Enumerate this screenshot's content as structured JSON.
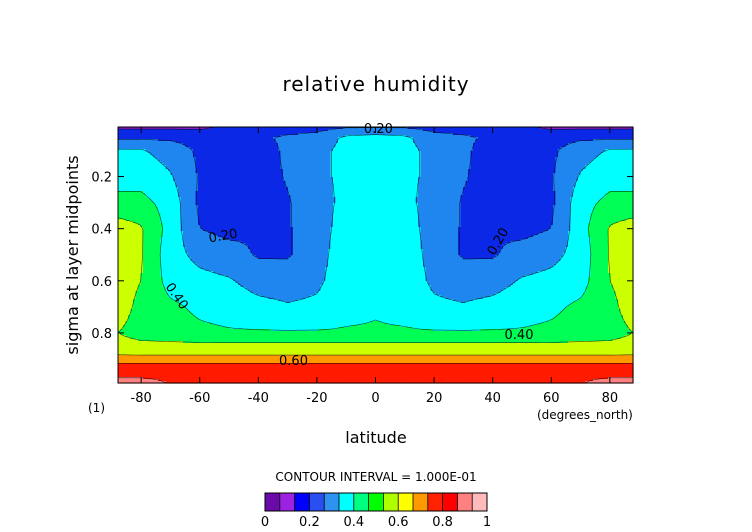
{
  "chart_data": {
    "type": "heatmap",
    "title": "relative humidity",
    "xlabel": "latitude",
    "ylabel": "sigma at layer midpoints",
    "x_units": "(degrees_north)",
    "panel_tag": "(1)",
    "xlim": [
      -87.9,
      87.9
    ],
    "ylim": [
      0.992,
      0.01
    ],
    "x_ticks": [
      "-80",
      "-60",
      "-40",
      "-20",
      "0",
      "20",
      "40",
      "60",
      "80"
    ],
    "x_tick_values": [
      -80,
      -60,
      -40,
      -20,
      0,
      20,
      40,
      60,
      80
    ],
    "y_ticks": [
      "0.2",
      "0.4",
      "0.6",
      "0.8"
    ],
    "y_tick_values": [
      0.2,
      0.4,
      0.6,
      0.8
    ],
    "contour_interval_text": "CONTOUR INTERVAL = 1.000E-01",
    "contour_labels": [
      {
        "text": "0.20",
        "x": 1,
        "y": 0.02,
        "angle": 0
      },
      {
        "text": "0.20",
        "x": -52,
        "y": 0.43,
        "angle": -10
      },
      {
        "text": "0.20",
        "x": 42,
        "y": 0.45,
        "angle": -60
      },
      {
        "text": "0.40",
        "x": -68,
        "y": 0.66,
        "angle": 55
      },
      {
        "text": "0.40",
        "x": 49,
        "y": 0.81,
        "angle": 0
      },
      {
        "text": "0.60",
        "x": -28,
        "y": 0.91,
        "angle": 0
      }
    ],
    "colorbar": {
      "ticks": [
        "0",
        "0.2",
        "0.4",
        "0.6",
        "0.8",
        "1"
      ],
      "tick_values": [
        0,
        0.2,
        0.4,
        0.6,
        0.8,
        1
      ],
      "colors": [
        "#6a0aa8",
        "#9b22e0",
        "#0000ff",
        "#2a4ff0",
        "#2f91f0",
        "#00ffff",
        "#00ff80",
        "#00ff00",
        "#b0ff00",
        "#ffff00",
        "#ff9900",
        "#ff2200",
        "#ff0000",
        "#ff8080",
        "#ffbbbb"
      ]
    },
    "levels": [
      0.1,
      0.2,
      0.3,
      0.4,
      0.5,
      0.6,
      0.7,
      0.8,
      0.9
    ],
    "band_colors": [
      "#8a1cc8",
      "#0b28e6",
      "#1f86f0",
      "#00ffff",
      "#00ff55",
      "#ccff00",
      "#ff9900",
      "#ff1a00",
      "#ff8080"
    ],
    "lat": [
      -88,
      -80,
      -70,
      -60,
      -50,
      -40,
      -30,
      -20,
      -10,
      0,
      10,
      20,
      30,
      40,
      50,
      60,
      70,
      80,
      88
    ],
    "sigma": [
      0.01,
      0.05,
      0.1,
      0.2,
      0.3,
      0.4,
      0.5,
      0.6,
      0.7,
      0.8,
      0.85,
      0.9,
      0.93,
      0.96,
      0.99
    ],
    "values": [
      [
        0.08,
        0.08,
        0.08,
        0.08,
        0.12,
        0.13,
        0.14,
        0.16,
        0.19,
        0.19,
        0.19,
        0.16,
        0.14,
        0.13,
        0.12,
        0.08,
        0.08,
        0.08,
        0.08
      ],
      [
        0.18,
        0.18,
        0.18,
        0.16,
        0.17,
        0.18,
        0.22,
        0.24,
        0.32,
        0.34,
        0.32,
        0.24,
        0.22,
        0.18,
        0.17,
        0.16,
        0.18,
        0.18,
        0.18
      ],
      [
        0.31,
        0.31,
        0.26,
        0.18,
        0.15,
        0.15,
        0.22,
        0.27,
        0.33,
        0.35,
        0.33,
        0.27,
        0.22,
        0.15,
        0.15,
        0.18,
        0.26,
        0.31,
        0.31
      ],
      [
        0.36,
        0.36,
        0.31,
        0.19,
        0.15,
        0.15,
        0.21,
        0.29,
        0.31,
        0.31,
        0.31,
        0.29,
        0.21,
        0.15,
        0.15,
        0.19,
        0.31,
        0.36,
        0.36
      ],
      [
        0.43,
        0.43,
        0.36,
        0.18,
        0.15,
        0.16,
        0.19,
        0.27,
        0.32,
        0.34,
        0.32,
        0.27,
        0.19,
        0.16,
        0.15,
        0.18,
        0.36,
        0.43,
        0.43
      ],
      [
        0.55,
        0.51,
        0.36,
        0.2,
        0.17,
        0.19,
        0.19,
        0.26,
        0.34,
        0.38,
        0.34,
        0.26,
        0.19,
        0.19,
        0.17,
        0.2,
        0.36,
        0.51,
        0.55
      ],
      [
        0.55,
        0.51,
        0.34,
        0.27,
        0.24,
        0.19,
        0.19,
        0.26,
        0.36,
        0.38,
        0.36,
        0.26,
        0.19,
        0.19,
        0.24,
        0.27,
        0.34,
        0.51,
        0.55
      ],
      [
        0.55,
        0.5,
        0.36,
        0.33,
        0.31,
        0.26,
        0.25,
        0.28,
        0.36,
        0.39,
        0.36,
        0.28,
        0.25,
        0.26,
        0.31,
        0.33,
        0.36,
        0.5,
        0.55
      ],
      [
        0.55,
        0.47,
        0.42,
        0.38,
        0.36,
        0.33,
        0.31,
        0.32,
        0.37,
        0.39,
        0.37,
        0.32,
        0.31,
        0.33,
        0.36,
        0.38,
        0.42,
        0.47,
        0.55
      ],
      [
        0.5,
        0.46,
        0.44,
        0.42,
        0.41,
        0.41,
        0.41,
        0.41,
        0.41,
        0.41,
        0.41,
        0.41,
        0.41,
        0.41,
        0.41,
        0.42,
        0.44,
        0.46,
        0.5
      ],
      [
        0.54,
        0.53,
        0.53,
        0.53,
        0.53,
        0.53,
        0.53,
        0.53,
        0.53,
        0.53,
        0.53,
        0.53,
        0.53,
        0.53,
        0.53,
        0.53,
        0.53,
        0.53,
        0.54
      ],
      [
        0.63,
        0.63,
        0.63,
        0.63,
        0.63,
        0.63,
        0.63,
        0.63,
        0.63,
        0.63,
        0.63,
        0.63,
        0.63,
        0.63,
        0.63,
        0.63,
        0.63,
        0.63,
        0.63
      ],
      [
        0.75,
        0.75,
        0.75,
        0.75,
        0.75,
        0.75,
        0.75,
        0.75,
        0.75,
        0.75,
        0.75,
        0.75,
        0.75,
        0.75,
        0.75,
        0.75,
        0.75,
        0.75,
        0.75
      ],
      [
        0.76,
        0.76,
        0.76,
        0.76,
        0.76,
        0.76,
        0.77,
        0.79,
        0.77,
        0.76,
        0.77,
        0.79,
        0.77,
        0.76,
        0.76,
        0.76,
        0.76,
        0.76,
        0.76
      ],
      [
        0.86,
        0.86,
        0.79,
        0.78,
        0.78,
        0.78,
        0.78,
        0.79,
        0.78,
        0.78,
        0.78,
        0.79,
        0.78,
        0.78,
        0.78,
        0.78,
        0.79,
        0.86,
        0.86
      ]
    ]
  }
}
